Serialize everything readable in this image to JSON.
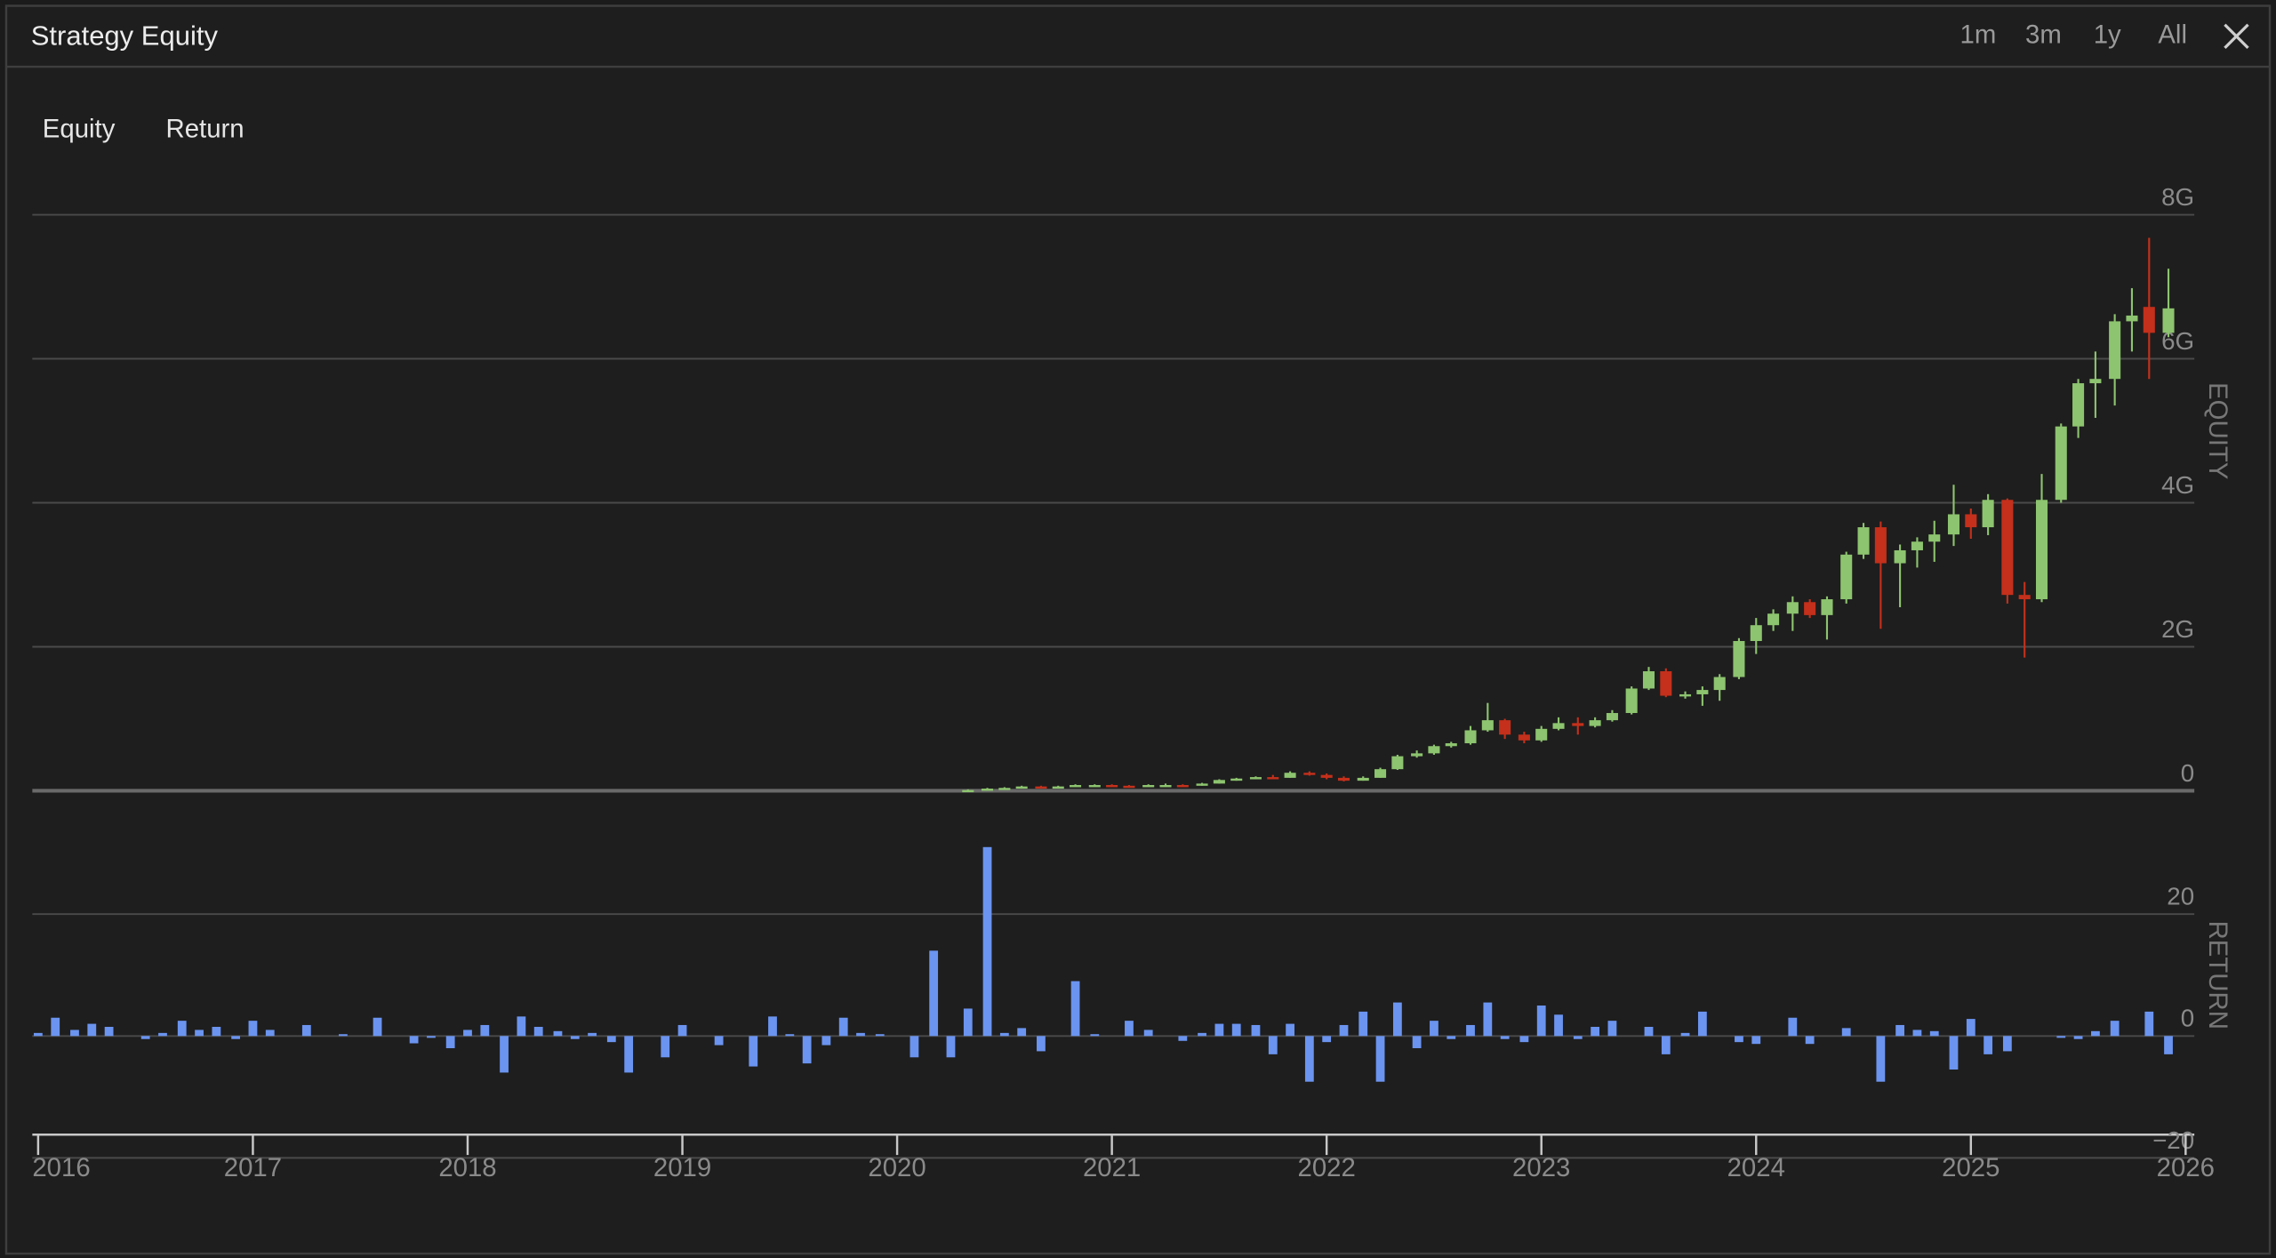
{
  "header": {
    "title": "Strategy Equity",
    "ranges": [
      "1m",
      "3m",
      "1y",
      "All"
    ]
  },
  "tabs": [
    "Equity",
    "Return"
  ],
  "chart_data": [
    {
      "type": "candlestick",
      "y_label": "EQUITY",
      "x": [
        2020.33,
        2020.42,
        2020.5,
        2020.58,
        2020.67,
        2020.75,
        2020.83,
        2020.92,
        2021,
        2021.08,
        2021.17,
        2021.25,
        2021.33,
        2021.42,
        2021.5,
        2021.58,
        2021.67,
        2021.75,
        2021.83,
        2021.92,
        2022,
        2022.08,
        2022.17,
        2022.25,
        2022.33,
        2022.42,
        2022.5,
        2022.58,
        2022.67,
        2022.75,
        2022.83,
        2022.92,
        2023,
        2023.08,
        2023.17,
        2023.25,
        2023.33,
        2023.42,
        2023.5,
        2023.58,
        2023.67,
        2023.75,
        2023.83,
        2023.92,
        2024,
        2024.08,
        2024.17,
        2024.25,
        2024.33,
        2024.42,
        2024.5,
        2024.58,
        2024.67,
        2024.75,
        2024.83,
        2024.92,
        2025,
        2025.08,
        2025.17,
        2025.25,
        2025.33,
        2025.42,
        2025.5,
        2025.58,
        2025.67,
        2025.75,
        2025.83,
        2025.92
      ],
      "open": [
        0,
        0.01,
        0.03,
        0.04,
        0.06,
        0.05,
        0.06,
        0.08,
        0.08,
        0.07,
        0.06,
        0.08,
        0.08,
        0.07,
        0.1,
        0.15,
        0.17,
        0.19,
        0.18,
        0.25,
        0.22,
        0.18,
        0.14,
        0.18,
        0.3,
        0.48,
        0.52,
        0.62,
        0.66,
        0.84,
        0.98,
        0.78,
        0.7,
        0.86,
        0.94,
        0.9,
        0.98,
        1.08,
        1.42,
        1.66,
        1.32,
        1.34,
        1.4,
        1.58,
        2.08,
        2.3,
        2.46,
        2.62,
        2.44,
        2.66,
        3.28,
        3.66,
        3.16,
        3.34,
        3.46,
        3.56,
        3.84,
        3.66,
        4.04,
        2.72,
        2.66,
        4.04,
        5.06,
        5.66,
        5.72,
        6.52,
        6.72,
        6.36
      ],
      "high": [
        0.02,
        0.04,
        0.05,
        0.07,
        0.07,
        0.07,
        0.09,
        0.09,
        0.09,
        0.08,
        0.09,
        0.1,
        0.09,
        0.11,
        0.16,
        0.18,
        0.2,
        0.22,
        0.27,
        0.27,
        0.24,
        0.2,
        0.2,
        0.32,
        0.5,
        0.56,
        0.64,
        0.68,
        0.9,
        1.22,
        1.0,
        0.82,
        0.9,
        1.02,
        1.02,
        1.02,
        1.12,
        1.45,
        1.72,
        1.7,
        1.38,
        1.45,
        1.62,
        2.12,
        2.4,
        2.52,
        2.7,
        2.66,
        2.7,
        3.32,
        3.72,
        3.74,
        3.42,
        3.52,
        3.75,
        4.25,
        3.92,
        4.12,
        4.06,
        2.9,
        4.4,
        5.1,
        5.72,
        6.1,
        6.62,
        6.98,
        7.68,
        7.25
      ],
      "low": [
        0,
        0.01,
        0.03,
        0.04,
        0.05,
        0.05,
        0.06,
        0.07,
        0.06,
        0.06,
        0.06,
        0.07,
        0.06,
        0.07,
        0.1,
        0.14,
        0.16,
        0.17,
        0.18,
        0.21,
        0.16,
        0.13,
        0.14,
        0.18,
        0.29,
        0.46,
        0.5,
        0.6,
        0.64,
        0.82,
        0.72,
        0.66,
        0.68,
        0.84,
        0.78,
        0.88,
        0.96,
        1.06,
        1.4,
        1.3,
        1.28,
        1.18,
        1.25,
        1.55,
        1.9,
        2.22,
        2.22,
        2.4,
        2.1,
        2.6,
        3.22,
        2.25,
        2.55,
        3.1,
        3.18,
        3.4,
        3.5,
        3.55,
        2.6,
        1.85,
        2.62,
        4.0,
        4.9,
        5.18,
        5.35,
        6.1,
        5.72,
        6.3
      ],
      "close": [
        0.01,
        0.03,
        0.04,
        0.06,
        0.05,
        0.06,
        0.08,
        0.08,
        0.07,
        0.06,
        0.08,
        0.08,
        0.07,
        0.1,
        0.15,
        0.17,
        0.19,
        0.18,
        0.25,
        0.22,
        0.18,
        0.14,
        0.18,
        0.3,
        0.48,
        0.52,
        0.62,
        0.66,
        0.84,
        0.98,
        0.78,
        0.7,
        0.86,
        0.94,
        0.9,
        0.98,
        1.08,
        1.42,
        1.66,
        1.32,
        1.34,
        1.4,
        1.58,
        2.08,
        2.3,
        2.46,
        2.62,
        2.44,
        2.66,
        3.28,
        3.66,
        3.16,
        3.34,
        3.46,
        3.56,
        3.84,
        3.66,
        4.04,
        2.72,
        2.66,
        4.04,
        5.06,
        5.66,
        5.72,
        6.52,
        6.6,
        6.36,
        6.7
      ],
      "up_color": "#8dc46f",
      "down_color": "#c4301b",
      "xlim": [
        2016,
        2026
      ],
      "ylim": [
        0,
        8
      ],
      "yticks": [
        0,
        {
          "value": 2,
          "label": "2G"
        },
        {
          "value": 4,
          "label": "4G"
        },
        {
          "value": 6,
          "label": "6G"
        },
        {
          "value": 8,
          "label": "8G"
        }
      ],
      "grid": true
    },
    {
      "type": "bar",
      "y_label": "RETURN",
      "x": [
        2016,
        2016.08,
        2016.17,
        2016.25,
        2016.33,
        2016.42,
        2016.5,
        2016.58,
        2016.67,
        2016.75,
        2016.83,
        2016.92,
        2017,
        2017.08,
        2017.17,
        2017.25,
        2017.33,
        2017.42,
        2017.5,
        2017.58,
        2017.67,
        2017.75,
        2017.83,
        2017.92,
        2018,
        2018.08,
        2018.17,
        2018.25,
        2018.33,
        2018.42,
        2018.5,
        2018.58,
        2018.67,
        2018.75,
        2018.83,
        2018.92,
        2019,
        2019.08,
        2019.17,
        2019.25,
        2019.33,
        2019.42,
        2019.5,
        2019.58,
        2019.67,
        2019.75,
        2019.83,
        2019.92,
        2020,
        2020.08,
        2020.17,
        2020.25,
        2020.33,
        2020.42,
        2020.5,
        2020.58,
        2020.67,
        2020.75,
        2020.83,
        2020.92,
        2021,
        2021.08,
        2021.17,
        2021.25,
        2021.33,
        2021.42,
        2021.5,
        2021.58,
        2021.67,
        2021.75,
        2021.83,
        2021.92,
        2022,
        2022.08,
        2022.17,
        2022.25,
        2022.33,
        2022.42,
        2022.5,
        2022.58,
        2022.67,
        2022.75,
        2022.83,
        2022.92,
        2023,
        2023.08,
        2023.17,
        2023.25,
        2023.33,
        2023.42,
        2023.5,
        2023.58,
        2023.67,
        2023.75,
        2023.83,
        2023.92,
        2024,
        2024.08,
        2024.17,
        2024.25,
        2024.33,
        2024.42,
        2024.5,
        2024.58,
        2024.67,
        2024.75,
        2024.83,
        2024.92,
        2025,
        2025.08,
        2025.17,
        2025.25,
        2025.33,
        2025.42,
        2025.5,
        2025.58,
        2025.67,
        2025.75,
        2025.83,
        2025.92
      ],
      "values": [
        0.5,
        3,
        1,
        2,
        1.5,
        0,
        -0.5,
        0.5,
        2.5,
        1,
        1.5,
        -0.5,
        2.5,
        1,
        0,
        1.8,
        0,
        0.3,
        0,
        3,
        0,
        -1.2,
        -0.3,
        -2,
        1,
        1.8,
        -6,
        3.2,
        1.5,
        0.8,
        -0.5,
        0.5,
        -1,
        -6,
        0,
        -3.5,
        1.8,
        0,
        -1.5,
        0,
        -5,
        3.2,
        0.3,
        -4.5,
        -1.5,
        3,
        0.5,
        0.3,
        0,
        -3.5,
        14,
        -3.5,
        4.5,
        31,
        0.5,
        1.3,
        -2.5,
        0,
        9,
        0.3,
        0,
        2.5,
        1,
        0,
        -0.8,
        0.5,
        2,
        2,
        1.8,
        -3,
        2,
        -7.5,
        -1,
        1.8,
        4,
        -7.5,
        5.5,
        -2,
        2.5,
        -0.5,
        1.8,
        5.5,
        -0.5,
        -1,
        5,
        3.5,
        -0.5,
        1.5,
        2.5,
        0,
        1.5,
        -3,
        0.5,
        4,
        0,
        -1,
        -1.3,
        0,
        3,
        -1.3,
        0,
        1.3,
        0,
        -7.5,
        1.8,
        1,
        0.8,
        -5.5,
        2.8,
        -3,
        -2.5,
        0,
        0,
        -0.3,
        -0.5,
        0.8,
        2.5,
        0,
        4,
        -3
      ],
      "color": "#6b94f0",
      "xlim": [
        2016,
        2026
      ],
      "xticks": [
        2016,
        2017,
        2018,
        2019,
        2020,
        2021,
        2022,
        2023,
        2024,
        2025,
        2026
      ],
      "ylim": [
        -20,
        40
      ],
      "yticks": [
        {
          "value": -20,
          "label": "−20"
        },
        0,
        20
      ],
      "grid": true
    }
  ]
}
